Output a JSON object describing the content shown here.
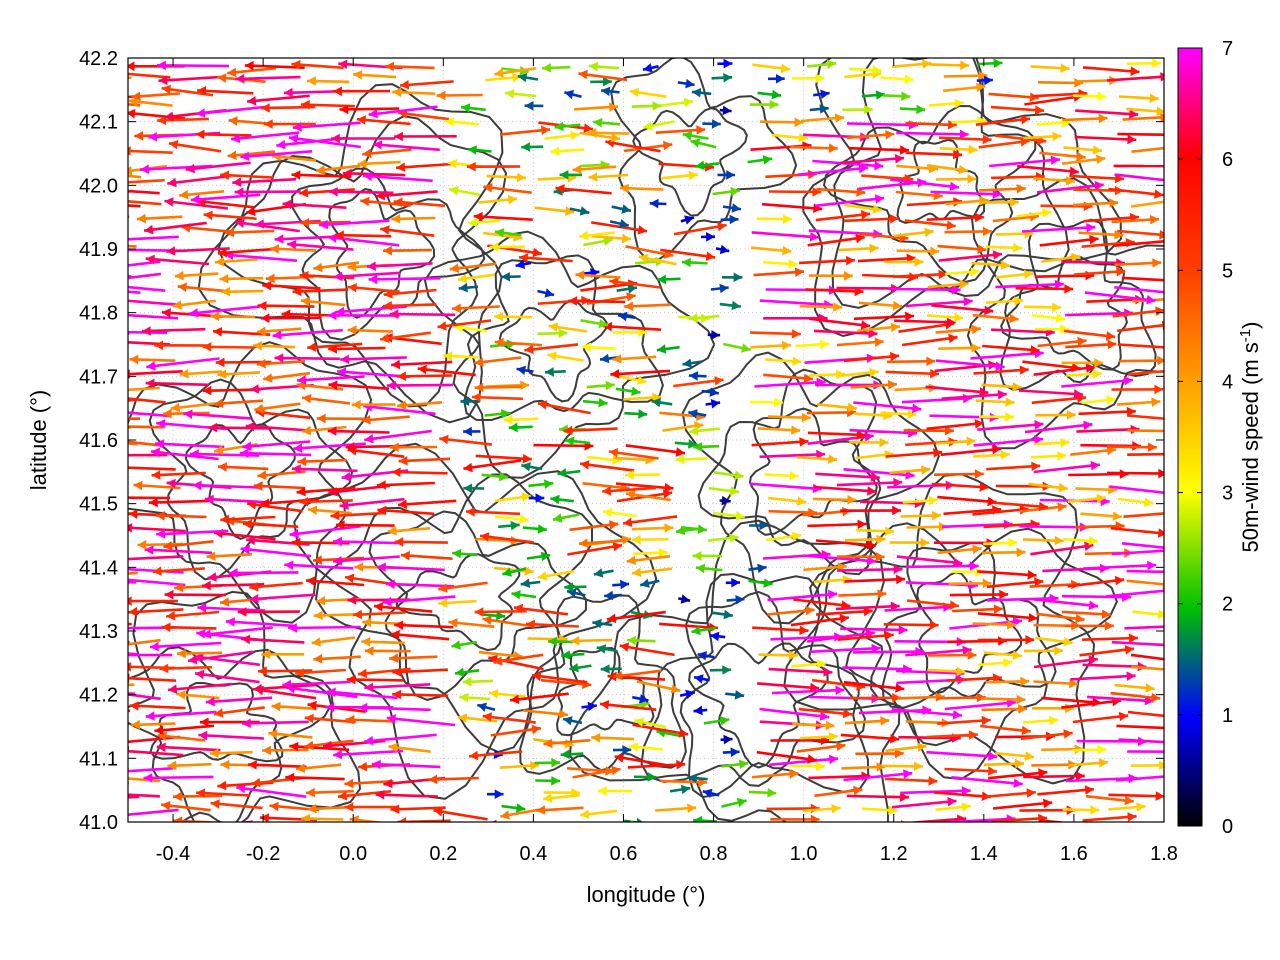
{
  "chart_data": {
    "type": "vector-field",
    "xlabel": "longitude (°)",
    "ylabel": "latitude (°)",
    "colorbar_label": "50m-wind speed (m s",
    "colorbar_label_sup": "-1",
    "colorbar_label_close": ")",
    "xlim": [
      -0.5,
      1.8
    ],
    "ylim": [
      41.0,
      42.2
    ],
    "x_ticks": [
      -0.4,
      -0.2,
      0.0,
      0.2,
      0.4,
      0.6,
      0.8,
      1.0,
      1.2,
      1.4,
      1.6,
      1.8
    ],
    "x_tick_labels": [
      "-0.4",
      "-0.2",
      "0.0",
      "0.2",
      "0.4",
      "0.6",
      "0.8",
      "1.0",
      "1.2",
      "1.4",
      "1.6",
      "1.8"
    ],
    "y_ticks": [
      41.0,
      41.1,
      41.2,
      41.3,
      41.4,
      41.5,
      41.6,
      41.7,
      41.8,
      41.9,
      42.0,
      42.1,
      42.2
    ],
    "y_tick_labels": [
      "41.0",
      "41.1",
      "41.2",
      "41.3",
      "41.4",
      "41.5",
      "41.6",
      "41.7",
      "41.8",
      "41.9",
      "42.0",
      "42.1",
      "42.2"
    ],
    "colorbar_range": [
      0,
      7
    ],
    "colorbar_ticks": [
      0,
      1,
      2,
      3,
      4,
      5,
      6,
      7
    ],
    "colorbar_tick_labels": [
      "0",
      "1",
      "2",
      "3",
      "4",
      "5",
      "6",
      "7"
    ],
    "colorbar_colors": [
      "#000000",
      "#0000ff",
      "#00c000",
      "#ffff00",
      "#ffa000",
      "#ff4000",
      "#ff0000",
      "#ff00ff"
    ],
    "grid": true,
    "contour_color": "#3c3c3c",
    "wind_field": {
      "west_lon_max": 0.25,
      "east_lon_min": 0.85,
      "western_direction": "westward",
      "eastern_direction": "eastward",
      "calm_lon": 0.8
    }
  }
}
